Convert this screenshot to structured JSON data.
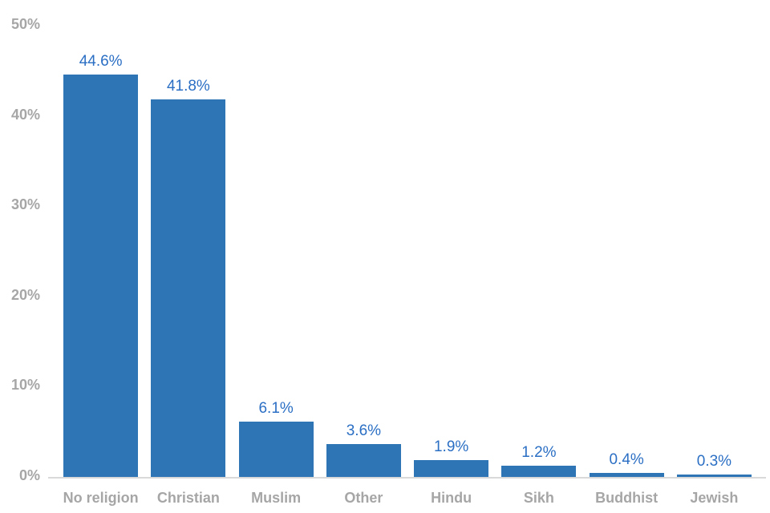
{
  "chart_data": {
    "type": "bar",
    "title": "",
    "xlabel": "",
    "ylabel": "",
    "categories": [
      "No religion",
      "Christian",
      "Muslim",
      "Other",
      "Hindu",
      "Sikh",
      "Buddhist",
      "Jewish"
    ],
    "values": [
      44.6,
      41.8,
      6.1,
      3.6,
      1.9,
      1.2,
      0.4,
      0.3
    ],
    "value_labels": [
      "44.6%",
      "41.8%",
      "6.1%",
      "3.6%",
      "1.9%",
      "1.2%",
      "0.4%",
      "0.3%"
    ],
    "ylim": [
      0,
      50
    ],
    "yticks": [
      {
        "value": 0,
        "label": "0%"
      },
      {
        "value": 10,
        "label": "10%"
      },
      {
        "value": 20,
        "label": "20%"
      },
      {
        "value": 30,
        "label": "30%"
      },
      {
        "value": 40,
        "label": "40%"
      },
      {
        "value": 50,
        "label": "50%"
      }
    ],
    "grid": false,
    "legend_position": "none",
    "colors": {
      "bar": "#2e75b6",
      "value_label": "#2b6fc4",
      "axis_text": "#a6a6a6",
      "axis_line": "#d9d9d9"
    }
  }
}
